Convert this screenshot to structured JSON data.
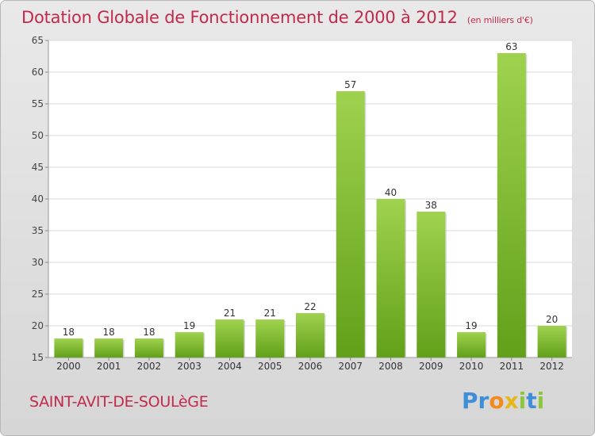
{
  "header": {
    "title": "Dotation Globale de Fonctionnement de 2000 à 2012",
    "subtitle": "(en milliers d'€)"
  },
  "footer": {
    "commune": "SAINT-AVIT-DE-SOULèGE",
    "logo_letters": [
      {
        "char": "P",
        "color": "#3f8fd8"
      },
      {
        "char": "r",
        "color": "#3f8fd8"
      },
      {
        "char": "o",
        "color": "#f28a1c"
      },
      {
        "char": "x",
        "color": "#e8b51b"
      },
      {
        "char": "i",
        "color": "#8cc63f"
      },
      {
        "char": "t",
        "color": "#3f8fd8"
      },
      {
        "char": "i",
        "color": "#8cc63f"
      }
    ]
  },
  "colors": {
    "title": "#c12a4b",
    "bar_light": "#9fd24f",
    "bar_dark": "#62a01a",
    "plot_background": "#ffffff",
    "grid": "#d9d9d9"
  },
  "chart_data": {
    "type": "bar",
    "title": "Dotation Globale de Fonctionnement de 2000 à 2012",
    "subtitle": "(en milliers d'€)",
    "xlabel": "",
    "ylabel": "",
    "categories": [
      "2000",
      "2001",
      "2002",
      "2003",
      "2004",
      "2005",
      "2006",
      "2007",
      "2008",
      "2009",
      "2010",
      "2011",
      "2012"
    ],
    "values": [
      18,
      18,
      18,
      19,
      21,
      21,
      22,
      57,
      40,
      38,
      19,
      63,
      20
    ],
    "ylim": [
      15,
      65
    ],
    "yticks": [
      15,
      20,
      25,
      30,
      35,
      40,
      45,
      50,
      55,
      60,
      65
    ],
    "grid": true,
    "legend": "none"
  }
}
